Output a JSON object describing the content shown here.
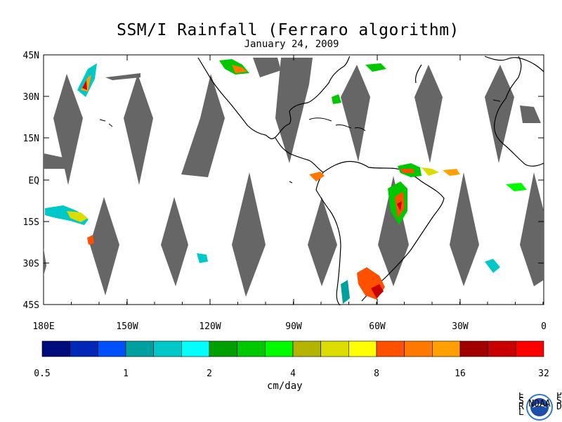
{
  "title": "SSM/I Rainfall (Ferraro algorithm)",
  "date": "January 24, 2009",
  "lat_labels": [
    "45N",
    "30N",
    "15N",
    "EQ",
    "15S",
    "30S",
    "45S"
  ],
  "lon_labels": [
    "180E",
    "150W",
    "120W",
    "90W",
    "60W",
    "30W",
    "0"
  ],
  "colorbar": {
    "units": "cm/day",
    "tick_labels": [
      "0.5",
      "1",
      "2",
      "4",
      "8",
      "16",
      "32"
    ],
    "colors": [
      "#000c7c",
      "#0028b4",
      "#0050fa",
      "#00a0a0",
      "#00c8c8",
      "#00ffff",
      "#00a000",
      "#00c800",
      "#00fa00",
      "#b4b400",
      "#dcdc00",
      "#ffff00",
      "#ff5000",
      "#ff7800",
      "#ffa000",
      "#a00000",
      "#c80000",
      "#ff0000"
    ]
  },
  "missing_color": "#666666",
  "logo": {
    "org_left": "ESRL",
    "org_right": "PSD",
    "emblem": "NOAA"
  }
}
